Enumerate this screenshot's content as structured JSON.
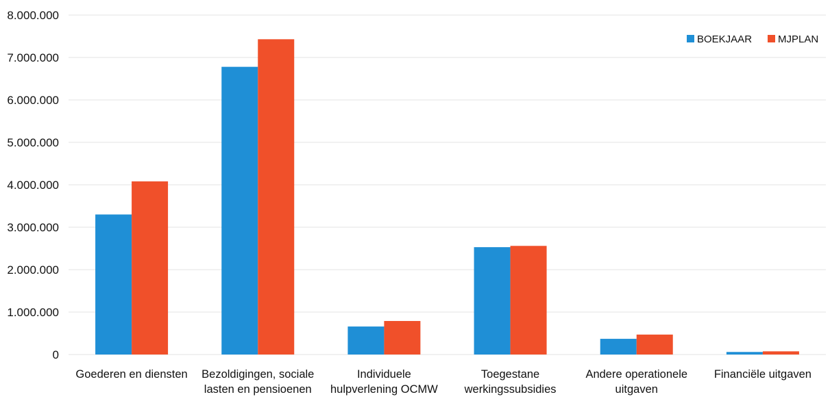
{
  "chart_data": {
    "type": "bar",
    "categories": [
      [
        "Goederen en diensten"
      ],
      [
        "Bezoldigingen, sociale",
        "lasten en pensioenen"
      ],
      [
        "Individuele",
        "hulpverlening OCMW"
      ],
      [
        "Toegestane",
        "werkingssubsidies"
      ],
      [
        "Andere operationele",
        "uitgaven"
      ],
      [
        "Financiële uitgaven"
      ]
    ],
    "series": [
      {
        "name": "BOEKJAAR",
        "color": "#1f8fd6",
        "values": [
          3300000,
          6780000,
          660000,
          2530000,
          370000,
          60000
        ]
      },
      {
        "name": "MJPLAN",
        "color": "#f0502a",
        "values": [
          4080000,
          7430000,
          790000,
          2560000,
          470000,
          75000
        ]
      }
    ],
    "ylim": [
      0,
      8000000
    ],
    "yticks": [
      0,
      1000000,
      2000000,
      3000000,
      4000000,
      5000000,
      6000000,
      7000000,
      8000000
    ],
    "ytick_labels": [
      "0",
      "1.000.000",
      "2.000.000",
      "3.000.000",
      "4.000.000",
      "5.000.000",
      "6.000.000",
      "7.000.000",
      "8.000.000"
    ],
    "grid": true,
    "legend_position": "top-right",
    "title": "",
    "xlabel": "",
    "ylabel": ""
  }
}
